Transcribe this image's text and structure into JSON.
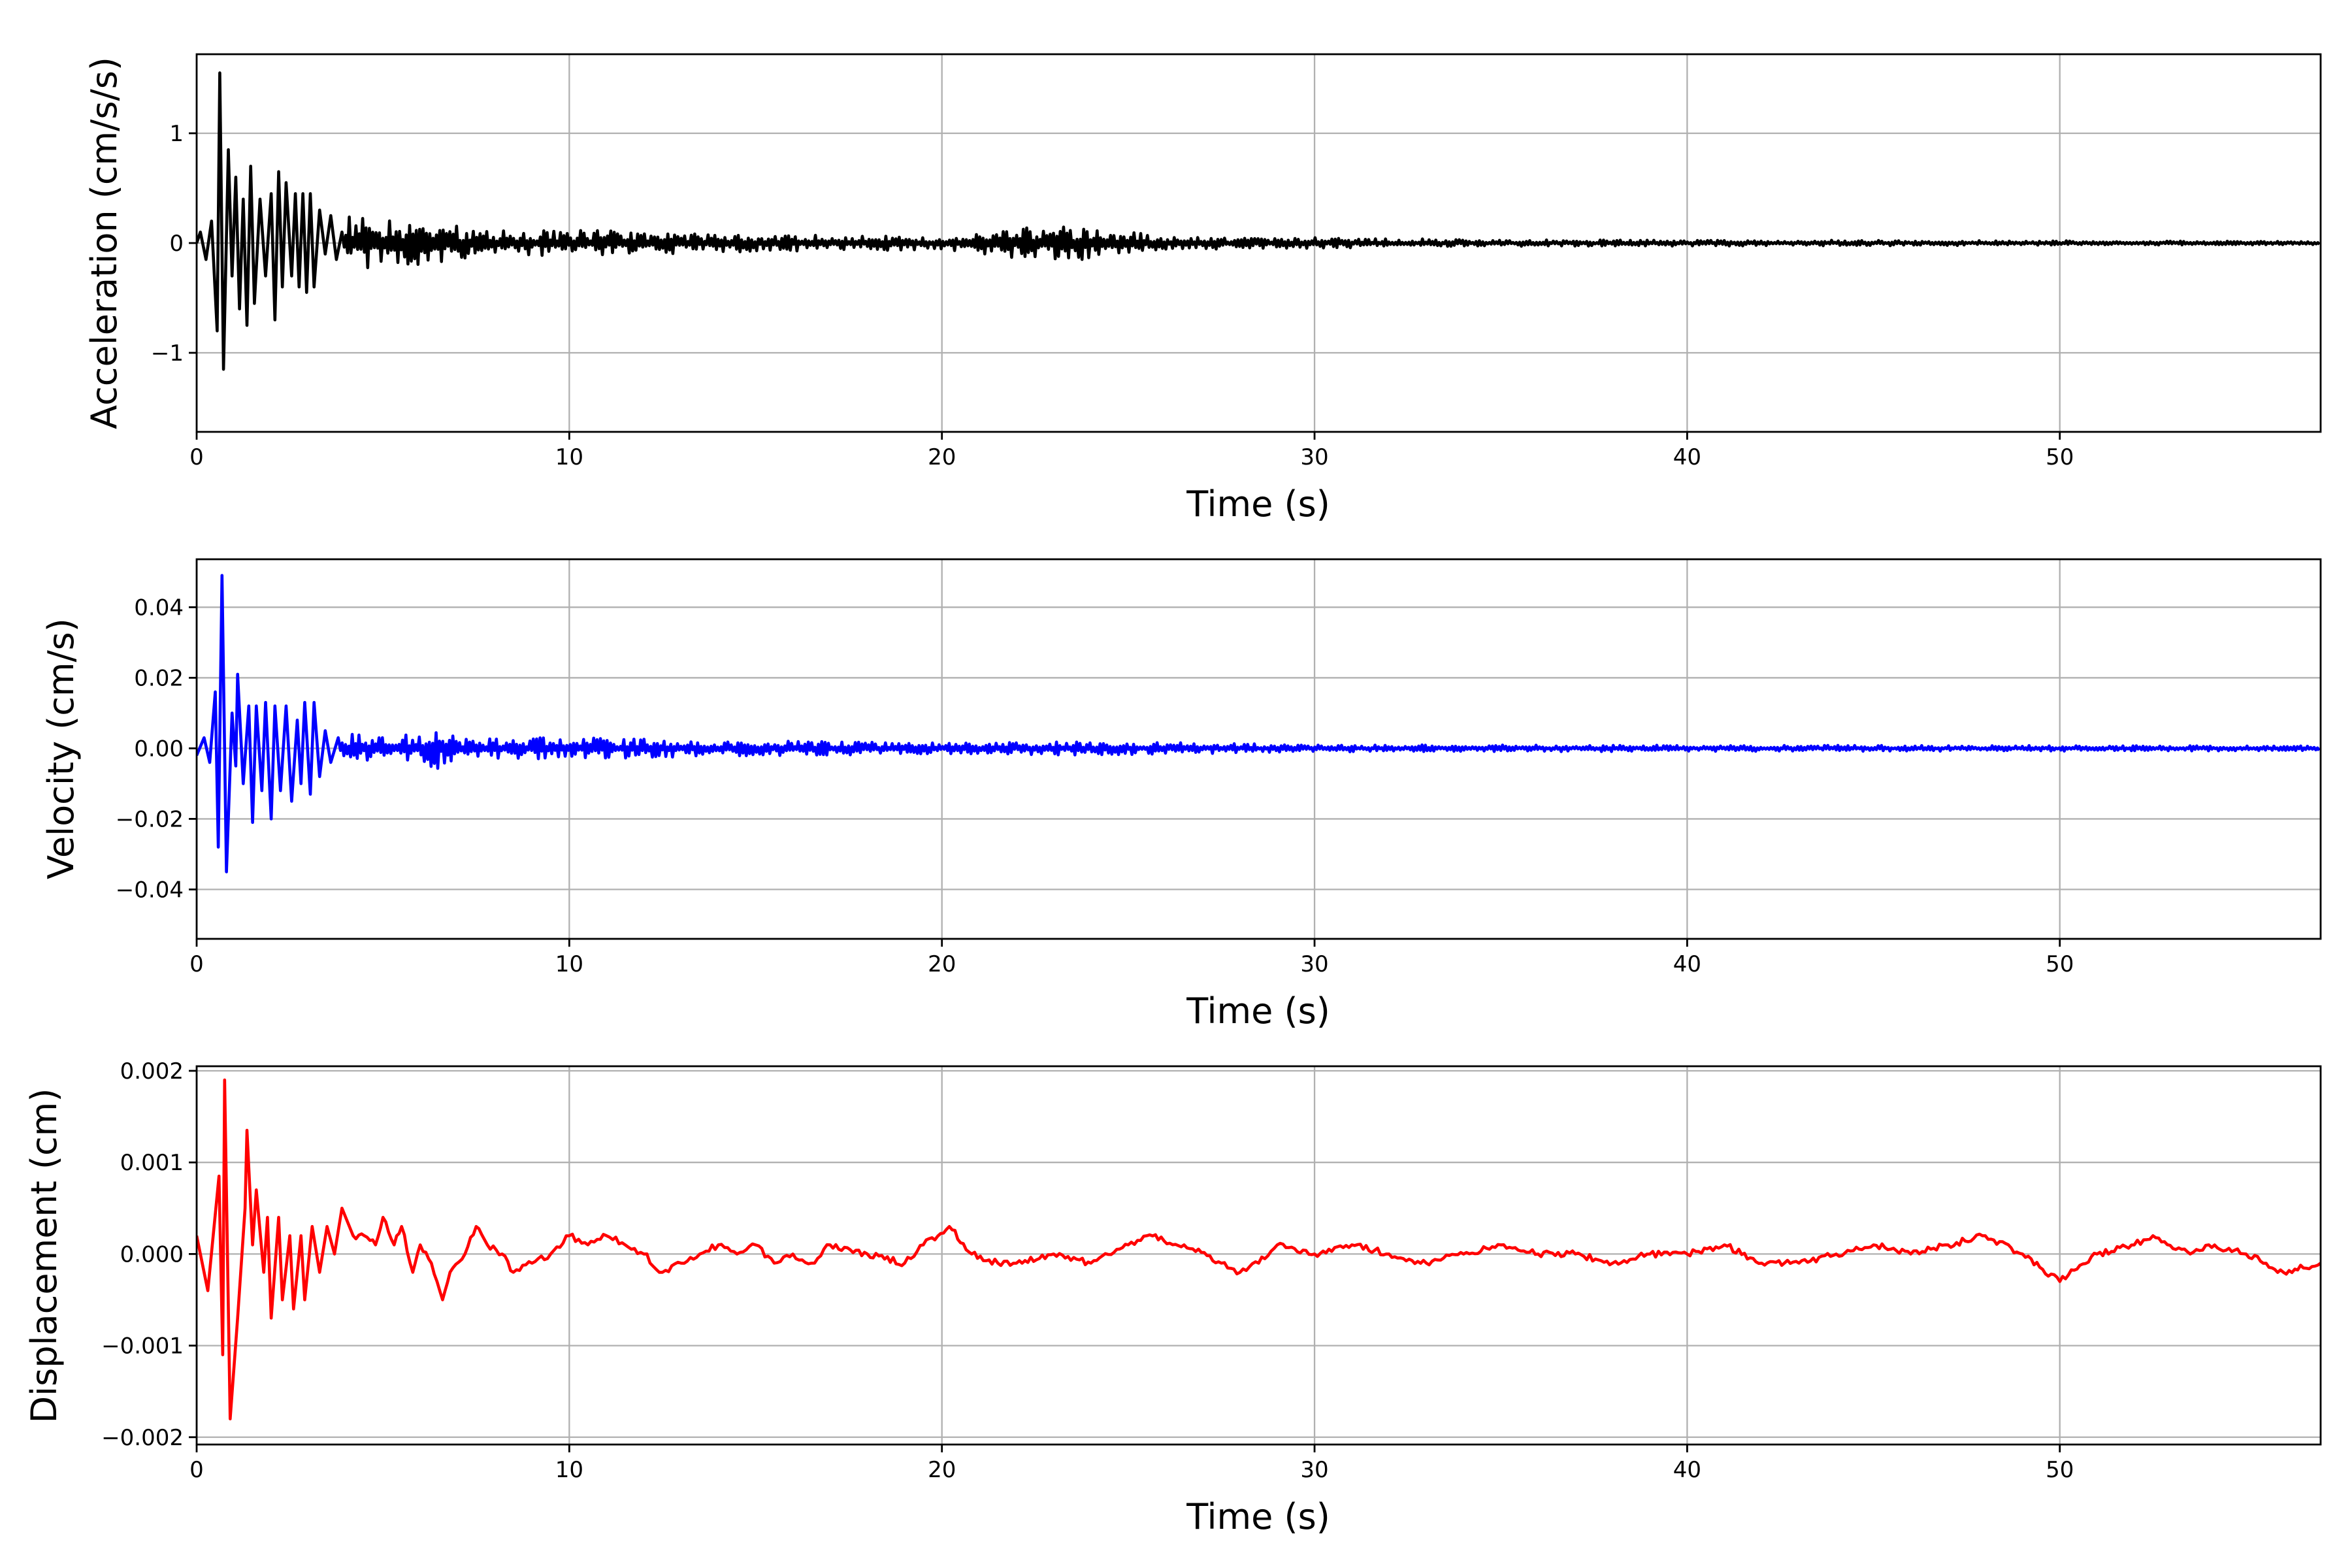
{
  "chart_data": [
    {
      "type": "line",
      "title": "",
      "xlabel": "Time (s)",
      "ylabel": "Acceleration (cm/s/s)",
      "color": "#000000",
      "xlim": [
        0,
        57
      ],
      "ylim": [
        -1.72,
        1.72
      ],
      "xticks": [
        0,
        10,
        20,
        30,
        40,
        50
      ],
      "xtick_labels": [
        "0",
        "10",
        "20",
        "30",
        "40",
        "50"
      ],
      "yticks": [
        -1,
        0,
        1
      ],
      "ytick_labels": [
        "−1",
        "0",
        "1"
      ],
      "grid": true,
      "points": [
        [
          0,
          0.0
        ],
        [
          0.1,
          0.1
        ],
        [
          0.25,
          -0.15
        ],
        [
          0.4,
          0.2
        ],
        [
          0.55,
          -0.8
        ],
        [
          0.62,
          1.55
        ],
        [
          0.72,
          -1.15
        ],
        [
          0.85,
          0.85
        ],
        [
          0.95,
          -0.3
        ],
        [
          1.05,
          0.6
        ],
        [
          1.15,
          -0.6
        ],
        [
          1.25,
          0.4
        ],
        [
          1.35,
          -0.75
        ],
        [
          1.45,
          0.7
        ],
        [
          1.55,
          -0.55
        ],
        [
          1.7,
          0.4
        ],
        [
          1.85,
          -0.3
        ],
        [
          2.0,
          0.45
        ],
        [
          2.1,
          -0.7
        ],
        [
          2.2,
          0.65
        ],
        [
          2.3,
          -0.4
        ],
        [
          2.4,
          0.55
        ],
        [
          2.55,
          -0.3
        ],
        [
          2.65,
          0.45
        ],
        [
          2.75,
          -0.4
        ],
        [
          2.85,
          0.45
        ],
        [
          2.95,
          -0.45
        ],
        [
          3.05,
          0.45
        ],
        [
          3.15,
          -0.4
        ],
        [
          3.3,
          0.3
        ],
        [
          3.45,
          -0.1
        ],
        [
          3.6,
          0.25
        ],
        [
          3.75,
          -0.15
        ],
        [
          3.9,
          0.1
        ]
      ],
      "envelope": [
        [
          3.9,
          0.25
        ],
        [
          6,
          0.2
        ],
        [
          8,
          0.12
        ],
        [
          10,
          0.12
        ],
        [
          15,
          0.08
        ],
        [
          20,
          0.06
        ],
        [
          22,
          0.15
        ],
        [
          24,
          0.15
        ],
        [
          26,
          0.06
        ],
        [
          30,
          0.05
        ],
        [
          35,
          0.03
        ],
        [
          45,
          0.025
        ],
        [
          57,
          0.015
        ]
      ]
    },
    {
      "type": "line",
      "title": "",
      "xlabel": "Time (s)",
      "ylabel": "Velocity (cm/s)",
      "color": "#0000ff",
      "xlim": [
        0,
        57
      ],
      "ylim": [
        -0.054,
        0.0536
      ],
      "xticks": [
        0,
        10,
        20,
        30,
        40,
        50
      ],
      "xtick_labels": [
        "0",
        "10",
        "20",
        "30",
        "40",
        "50"
      ],
      "yticks": [
        -0.04,
        -0.02,
        0.0,
        0.02,
        0.04
      ],
      "ytick_labels": [
        "−0.04",
        "−0.02",
        "0.00",
        "0.02",
        "0.04"
      ],
      "grid": true,
      "points": [
        [
          0,
          -0.002
        ],
        [
          0.2,
          0.003
        ],
        [
          0.35,
          -0.004
        ],
        [
          0.5,
          0.016
        ],
        [
          0.58,
          -0.028
        ],
        [
          0.68,
          0.049
        ],
        [
          0.8,
          -0.035
        ],
        [
          0.95,
          0.01
        ],
        [
          1.05,
          -0.005
        ],
        [
          1.1,
          0.021
        ],
        [
          1.25,
          -0.01
        ],
        [
          1.4,
          0.012
        ],
        [
          1.5,
          -0.021
        ],
        [
          1.6,
          0.012
        ],
        [
          1.75,
          -0.012
        ],
        [
          1.85,
          0.013
        ],
        [
          2.0,
          -0.02
        ],
        [
          2.1,
          0.012
        ],
        [
          2.25,
          -0.012
        ],
        [
          2.4,
          0.012
        ],
        [
          2.55,
          -0.015
        ],
        [
          2.7,
          0.008
        ],
        [
          2.8,
          -0.01
        ],
        [
          2.9,
          0.013
        ],
        [
          3.05,
          -0.013
        ],
        [
          3.15,
          0.013
        ],
        [
          3.3,
          -0.008
        ],
        [
          3.45,
          0.005
        ],
        [
          3.6,
          -0.004
        ],
        [
          3.8,
          0.003
        ]
      ],
      "envelope": [
        [
          3.8,
          0.004
        ],
        [
          6,
          0.004
        ],
        [
          6.5,
          0.006
        ],
        [
          7,
          0.003
        ],
        [
          10,
          0.003
        ],
        [
          20,
          0.0015
        ],
        [
          24,
          0.002
        ],
        [
          30,
          0.001
        ],
        [
          57,
          0.0007
        ]
      ]
    },
    {
      "type": "line",
      "title": "",
      "xlabel": "Time (s)",
      "ylabel": "Displacement (cm)",
      "color": "#ff0000",
      "xlim": [
        0,
        57
      ],
      "ylim": [
        -0.00208,
        0.00205
      ],
      "xticks": [
        0,
        10,
        20,
        30,
        40,
        50
      ],
      "xtick_labels": [
        "0",
        "10",
        "20",
        "30",
        "40",
        "50"
      ],
      "yticks": [
        -0.002,
        -0.001,
        0.0,
        0.001,
        0.002
      ],
      "ytick_labels": [
        "−0.002",
        "−0.001",
        "0.000",
        "0.001",
        "0.002"
      ],
      "grid": true,
      "points": [
        [
          0,
          0.0002
        ],
        [
          0.3,
          -0.0004
        ],
        [
          0.6,
          0.00085
        ],
        [
          0.7,
          -0.0011
        ],
        [
          0.75,
          0.0019
        ],
        [
          0.9,
          -0.0018
        ],
        [
          1.1,
          -0.0007
        ],
        [
          1.3,
          0.0005
        ],
        [
          1.35,
          0.00135
        ],
        [
          1.5,
          0.0001
        ],
        [
          1.6,
          0.0007
        ],
        [
          1.8,
          -0.0002
        ],
        [
          1.9,
          0.0004
        ],
        [
          2.0,
          -0.0007
        ],
        [
          2.2,
          0.0004
        ],
        [
          2.3,
          -0.0005
        ],
        [
          2.5,
          0.0002
        ],
        [
          2.6,
          -0.0006
        ],
        [
          2.8,
          0.0002
        ],
        [
          2.9,
          -0.0005
        ],
        [
          3.1,
          0.0003
        ],
        [
          3.3,
          -0.0002
        ],
        [
          3.5,
          0.0003
        ],
        [
          3.7,
          0.0
        ],
        [
          3.9,
          0.0005
        ],
        [
          4.2,
          0.0002
        ],
        [
          4.5,
          0.0002
        ],
        [
          4.8,
          0.0001
        ],
        [
          5.0,
          0.0004
        ],
        [
          5.3,
          0.0001
        ],
        [
          5.5,
          0.0003
        ],
        [
          5.8,
          -0.0002
        ],
        [
          6.0,
          0.0001
        ],
        [
          6.3,
          -0.0001
        ],
        [
          6.6,
          -0.0005
        ],
        [
          6.8,
          -0.0002
        ],
        [
          7.2,
          0.0
        ],
        [
          7.5,
          0.0003
        ],
        [
          7.8,
          0.0001
        ],
        [
          8.2,
          0.0
        ],
        [
          8.5,
          -0.0002
        ],
        [
          9.0,
          -0.0001
        ],
        [
          9.5,
          0.0
        ],
        [
          10.0,
          0.0002
        ],
        [
          10.5,
          0.0001
        ],
        [
          11.0,
          0.0002
        ],
        [
          11.5,
          0.0001
        ],
        [
          12,
          0.0
        ],
        [
          12.5,
          -0.0002
        ],
        [
          13,
          -0.0001
        ],
        [
          13.5,
          0.0
        ],
        [
          14,
          0.0001
        ],
        [
          14.5,
          0.0
        ],
        [
          15,
          0.0001
        ],
        [
          15.5,
          -0.0001
        ],
        [
          16,
          0.0
        ],
        [
          16.5,
          -0.0001
        ],
        [
          17,
          0.0001
        ],
        [
          18,
          0.0
        ],
        [
          19,
          -0.0001
        ],
        [
          19.5,
          0.0001
        ],
        [
          20.2,
          0.0003
        ],
        [
          20.8,
          0.0
        ],
        [
          21.5,
          -0.0001
        ],
        [
          22,
          -0.0001
        ],
        [
          23,
          0.0
        ],
        [
          24,
          -0.0001
        ],
        [
          25,
          0.0001
        ],
        [
          25.5,
          0.0002
        ],
        [
          26.5,
          0.0001
        ],
        [
          27.5,
          -0.0001
        ],
        [
          28,
          -0.0002
        ],
        [
          28.5,
          -0.0001
        ],
        [
          29,
          0.0001
        ],
        [
          30,
          0.0
        ],
        [
          31,
          0.0001
        ],
        [
          32,
          0.0
        ],
        [
          33,
          -0.0001
        ],
        [
          34,
          0.0
        ],
        [
          35,
          0.0001
        ],
        [
          36,
          0.0
        ],
        [
          37,
          0.0
        ],
        [
          38,
          -0.0001
        ],
        [
          39,
          0.0
        ],
        [
          40,
          0.0
        ],
        [
          41,
          0.0001
        ],
        [
          42,
          -0.0001
        ],
        [
          43,
          -0.0001
        ],
        [
          44,
          0.0
        ],
        [
          45,
          0.0001
        ],
        [
          46,
          0.0
        ],
        [
          47,
          0.0001
        ],
        [
          48,
          0.0002
        ],
        [
          49,
          0.0
        ],
        [
          50,
          -0.0003
        ],
        [
          51,
          0.0
        ],
        [
          52,
          0.0001
        ],
        [
          52.5,
          0.0002
        ],
        [
          53.5,
          0.0
        ],
        [
          54,
          0.0001
        ],
        [
          55,
          0.0
        ],
        [
          56,
          -0.0002
        ],
        [
          57,
          -0.0001
        ]
      ],
      "envelope": [
        [
          57,
          3e-05
        ],
        [
          57,
          3e-05
        ]
      ]
    }
  ]
}
